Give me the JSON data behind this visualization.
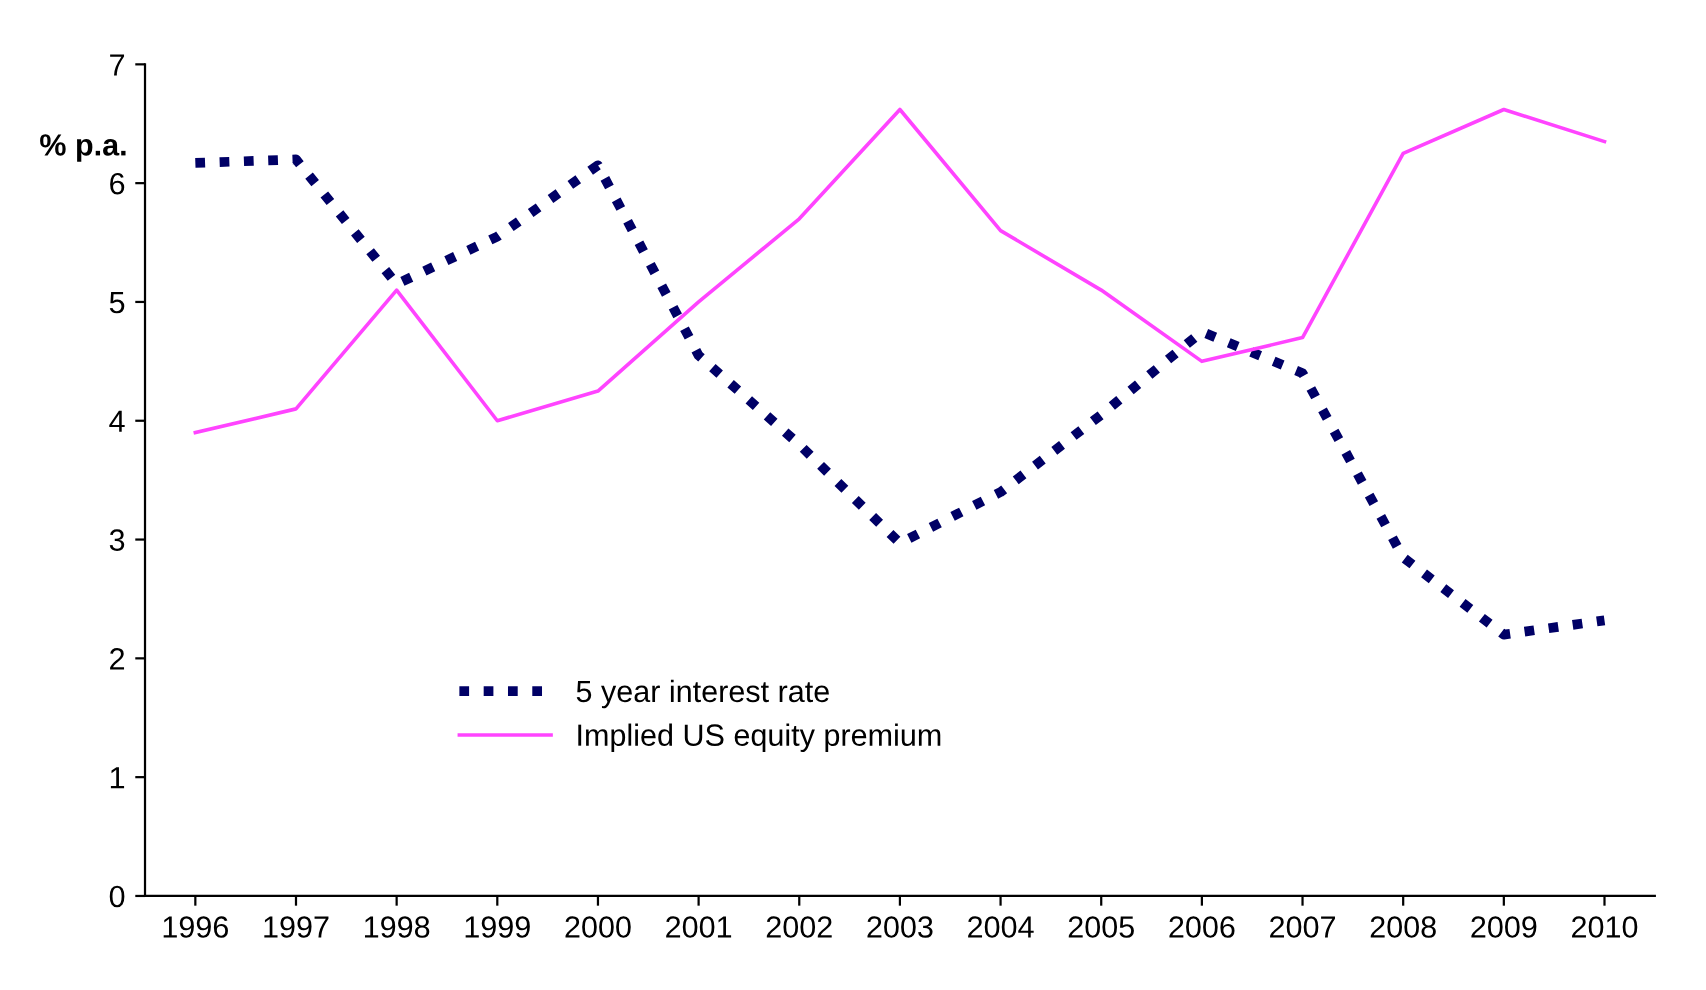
{
  "chart_data": {
    "type": "line",
    "ylabel": "% p.a.",
    "categories": [
      "1996",
      "1997",
      "1998",
      "1999",
      "2000",
      "2001",
      "2002",
      "2003",
      "2004",
      "2005",
      "2006",
      "2007",
      "2008",
      "2009",
      "2010"
    ],
    "series": [
      {
        "name": "5 year interest rate",
        "color": "#000066",
        "line_style": "dotted",
        "values": [
          6.17,
          6.2,
          5.15,
          5.55,
          6.15,
          4.55,
          3.8,
          2.97,
          3.4,
          4.05,
          4.75,
          4.4,
          2.85,
          2.2,
          2.32
        ]
      },
      {
        "name": "Implied US equity premium",
        "color": "#ff44ff",
        "line_style": "solid",
        "values": [
          3.9,
          4.1,
          5.1,
          4.0,
          4.25,
          5.0,
          5.7,
          6.62,
          5.6,
          5.1,
          4.5,
          4.7,
          6.25,
          6.62,
          6.35
        ]
      }
    ],
    "ylim": [
      0,
      7
    ],
    "yticks": [
      0,
      1,
      2,
      3,
      4,
      5,
      6,
      7
    ],
    "grid": false,
    "legend": "bottom left",
    "marker": "none"
  }
}
